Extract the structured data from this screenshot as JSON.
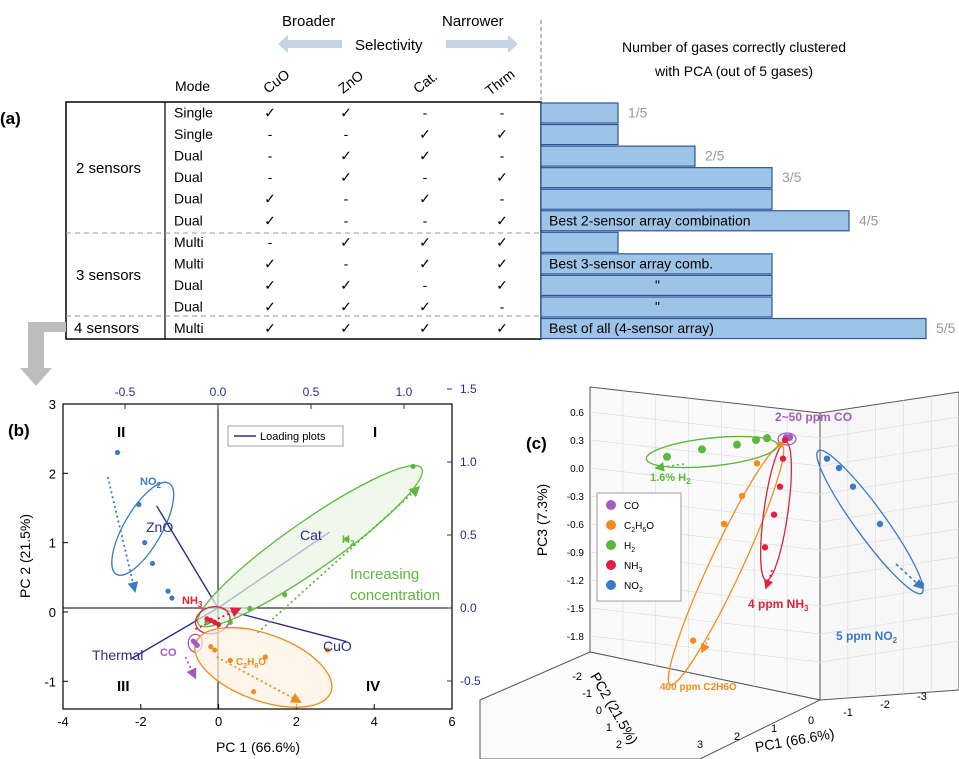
{
  "panel_a": {
    "label": "(a)",
    "header": {
      "broader": "Broader",
      "narrower": "Narrower",
      "selectivity": "Selectivity",
      "mode": "Mode",
      "col_cuo": "CuO",
      "col_zno": "ZnO",
      "col_cat": "Cat.",
      "col_thrm": "Thrm",
      "right_title_1": "Number  of gases correctly clustered",
      "right_title_2": "with PCA  (out of 5 gases)"
    },
    "groups": [
      "2 sensors",
      "3 sensors",
      "4 sensors"
    ],
    "check": "✓",
    "dash": "-",
    "rows": [
      {
        "mode": "Single",
        "cuo": "✓",
        "zno": "✓",
        "cat": "-",
        "thrm": "-",
        "count": 1,
        "score": "1/5",
        "note": ""
      },
      {
        "mode": "Single",
        "cuo": "-",
        "zno": "-",
        "cat": "✓",
        "thrm": "✓",
        "count": 1,
        "score": "",
        "note": ""
      },
      {
        "mode": "Dual",
        "cuo": "-",
        "zno": "✓",
        "cat": "✓",
        "thrm": "-",
        "count": 2,
        "score": "2/5",
        "note": ""
      },
      {
        "mode": "Dual",
        "cuo": "-",
        "zno": "✓",
        "cat": "-",
        "thrm": "✓",
        "count": 3,
        "score": "3/5",
        "note": ""
      },
      {
        "mode": "Dual",
        "cuo": "✓",
        "zno": "-",
        "cat": "✓",
        "thrm": "-",
        "count": 3,
        "score": "",
        "note": ""
      },
      {
        "mode": "Dual",
        "cuo": "✓",
        "zno": "-",
        "cat": "-",
        "thrm": "✓",
        "count": 4,
        "score": "4/5",
        "note": "Best 2-sensor array combination"
      },
      {
        "mode": "Multi",
        "cuo": "-",
        "zno": "✓",
        "cat": "✓",
        "thrm": "✓",
        "count": 1,
        "score": "",
        "note": ""
      },
      {
        "mode": "Multi",
        "cuo": "✓",
        "zno": "-",
        "cat": "✓",
        "thrm": "✓",
        "count": 3,
        "score": "",
        "note": "Best 3-sensor array comb."
      },
      {
        "mode": "Dual",
        "cuo": "✓",
        "zno": "✓",
        "cat": "-",
        "thrm": "✓",
        "count": 3,
        "score": "",
        "note": "\""
      },
      {
        "mode": "Dual",
        "cuo": "✓",
        "zno": "✓",
        "cat": "✓",
        "thrm": "-",
        "count": 3,
        "score": "",
        "note": "\""
      },
      {
        "mode": "Multi",
        "cuo": "✓",
        "zno": "✓",
        "cat": "✓",
        "thrm": "✓",
        "count": 5,
        "score": "5/5",
        "note": "Best of all (4-sensor array)"
      }
    ]
  },
  "panel_b": {
    "label": "(b)",
    "xlabel": "PC 1 (66.6%)",
    "ylabel": "PC 2 (21.5%)",
    "x_ticks": [
      "-4",
      "-2",
      "0",
      "2",
      "4",
      "6"
    ],
    "y_ticks": [
      "3",
      "2",
      "1",
      "0",
      "-1"
    ],
    "top_ticks": [
      "-0.5",
      "0.0",
      "0.5",
      "1.0"
    ],
    "right_ticks": [
      "1.5",
      "1.0",
      "0.5",
      "0.0",
      "-0.5"
    ],
    "quadrants": [
      "I",
      "II",
      "III",
      "IV"
    ],
    "legend": "Loading plots",
    "loading_labels": {
      "zno": "ZnO",
      "cat": "Cat",
      "cuo": "CuO",
      "thermal": "Thermal"
    },
    "gas_labels": {
      "no2": "NO",
      "no2_sub": "2",
      "h2": "H",
      "h2_sub": "2",
      "nh3": "NH",
      "nh3_sub": "3",
      "co": "CO",
      "c2h6o_a": "C",
      "c2h6o_b": "2",
      "c2h6o_c": "H",
      "c2h6o_d": "6",
      "c2h6o_e": "O"
    },
    "annotation_1": "Increasing",
    "annotation_2": "concentration",
    "colors": {
      "no2": "#3a7ac8",
      "h2": "#5cb83c",
      "nh3": "#e0203c",
      "co": "#a05cc0",
      "c2h6o": "#f08c1c",
      "loading": "#2c2c8c"
    }
  },
  "panel_c": {
    "label": "(c)",
    "ylabel": "PC3 (7.3%)",
    "xlabel": "PC1 (66.6%)",
    "zlabel": "PC2 (21.5%)",
    "y_ticks": [
      "0.6",
      "0.3",
      "0.0",
      "-0.3",
      "-0.6",
      "-0.9",
      "-1.2",
      "-1.5",
      "-1.8"
    ],
    "x_ticks": [
      "3",
      "2",
      "1",
      "0",
      "-1",
      "-2",
      "-3"
    ],
    "z_ticks": [
      "-2",
      "-1",
      "0",
      "1",
      "2"
    ],
    "legend": [
      {
        "name": "CO",
        "color": "#a05cc0"
      },
      {
        "name": "C2H6O",
        "color": "#f08c1c"
      },
      {
        "name": "H2",
        "color": "#5cb83c"
      },
      {
        "name": "NH3",
        "color": "#e0203c"
      },
      {
        "name": "NO2",
        "color": "#3a7ac8"
      }
    ],
    "annotations": {
      "co": "2~50 ppm CO",
      "h2": "1.6% H",
      "h2_sub": "2",
      "nh3": "4 ppm NH",
      "nh3_sub": "3",
      "no2": "5 ppm NO",
      "no2_sub": "2",
      "c2h6o": "400 ppm C2H6O"
    }
  },
  "chart_data": [
    {
      "type": "scatter",
      "panel": "(b)",
      "xlabel": "PC 1 (66.6%)",
      "ylabel": "PC 2 (21.5%)",
      "xlim": [
        -4,
        6
      ],
      "ylim": [
        -1.4,
        3
      ],
      "series": [
        {
          "name": "NO2",
          "color": "#3a7ac8",
          "points": [
            [
              -2.6,
              2.3
            ],
            [
              -2.05,
              1.55
            ],
            [
              -1.9,
              1.0
            ],
            [
              -1.7,
              0.7
            ],
            [
              -1.3,
              0.3
            ],
            [
              -1.2,
              0.2
            ]
          ]
        },
        {
          "name": "H2",
          "color": "#5cb83c",
          "points": [
            [
              5.0,
              2.1
            ],
            [
              3.3,
              1.05
            ],
            [
              1.7,
              0.25
            ],
            [
              0.8,
              0.05
            ],
            [
              0.3,
              -0.15
            ],
            [
              -0.3,
              -0.15
            ]
          ]
        },
        {
          "name": "NH3",
          "color": "#e0203c",
          "points": [
            [
              -0.3,
              -0.1
            ],
            [
              -0.2,
              -0.12
            ],
            [
              -0.1,
              -0.15
            ],
            [
              0.0,
              -0.18
            ]
          ]
        },
        {
          "name": "CO",
          "color": "#a05cc0",
          "points": [
            [
              -0.65,
              -0.42
            ],
            [
              -0.6,
              -0.45
            ],
            [
              -0.55,
              -0.48
            ]
          ]
        },
        {
          "name": "C2H6O",
          "color": "#f08c1c",
          "points": [
            [
              2.8,
              -0.55
            ],
            [
              1.2,
              -0.65
            ],
            [
              0.3,
              -0.7
            ],
            [
              0.9,
              -1.15
            ],
            [
              -0.1,
              -0.55
            ],
            [
              -0.2,
              -0.5
            ]
          ]
        }
      ],
      "loadings": [
        {
          "name": "ZnO",
          "x": -0.33,
          "y": 0.7
        },
        {
          "name": "Cat",
          "x": 0.6,
          "y": 0.52
        },
        {
          "name": "CuO",
          "x": 0.69,
          "y": -0.23
        },
        {
          "name": "Thermal",
          "x": -0.47,
          "y": -0.35
        }
      ]
    },
    {
      "type": "scatter",
      "panel": "(c)",
      "xlabel": "PC1 (66.6%)",
      "ylabel": "PC3 (7.3%)",
      "zlabel": "PC2 (21.5%)",
      "ylim": [
        -1.8,
        0.6
      ],
      "series": [
        {
          "name": "CO",
          "values": [
            0.33,
            0.33,
            0.32
          ]
        },
        {
          "name": "C2H6O",
          "values": [
            0.25,
            0.05,
            -0.3,
            -0.6,
            -1.85
          ]
        },
        {
          "name": "H2",
          "values": [
            0.12,
            0.2,
            0.25,
            0.3,
            0.32
          ]
        },
        {
          "name": "NH3",
          "values": [
            0.3,
            0.1,
            -0.2,
            -0.5,
            -0.85
          ]
        },
        {
          "name": "NO2",
          "values": [
            0.1,
            0.0,
            -0.2,
            -0.6,
            -1.25
          ]
        }
      ]
    }
  ]
}
